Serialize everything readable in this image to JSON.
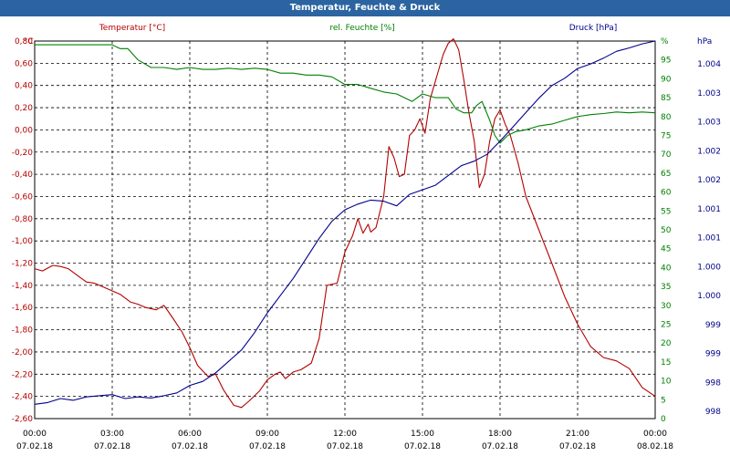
{
  "window": {
    "title": "Temperatur, Feuchte & Druck"
  },
  "chart_data": {
    "type": "line",
    "title": "Temperatur, Feuchte & Druck",
    "grid": true,
    "x_ticks": [
      {
        "time": "00:00",
        "date": "07.02.18"
      },
      {
        "time": "03:00",
        "date": "07.02.18"
      },
      {
        "time": "06:00",
        "date": "07.02.18"
      },
      {
        "time": "09:00",
        "date": "07.02.18"
      },
      {
        "time": "12:00",
        "date": "07.02.18"
      },
      {
        "time": "15:00",
        "date": "07.02.18"
      },
      {
        "time": "18:00",
        "date": "07.02.18"
      },
      {
        "time": "21:00",
        "date": "07.02.18"
      },
      {
        "time": "00:00",
        "date": "08.02.18"
      }
    ],
    "axes": {
      "temperature": {
        "label": "Temperatur [°C]",
        "unit": "°C",
        "color": "#b30000",
        "ylim": [
          -2.6,
          0.8
        ],
        "ticks": [
          "0,80",
          "0,60",
          "0,40",
          "0,20",
          "0,00",
          "-0,20",
          "-0,40",
          "-0,60",
          "-0,80",
          "-1,00",
          "-1,20",
          "-1,40",
          "-1,60",
          "-1,80",
          "-2,00",
          "-2,20",
          "-2,40",
          "-2,60"
        ]
      },
      "humidity": {
        "label": "rel. Feuchte [%]",
        "unit": "%",
        "color": "#008000",
        "ylim": [
          0,
          100
        ],
        "ticks": [
          "95",
          "90",
          "85",
          "80",
          "75",
          "70",
          "65",
          "60",
          "55",
          "50",
          "45",
          "40",
          "35",
          "30",
          "25",
          "20",
          "15",
          "10",
          "5",
          "0"
        ]
      },
      "pressure": {
        "label": "Druck [hPa]",
        "unit": "hPa",
        "color": "#00008b",
        "ylim": [
          997.7,
          1004.3
        ],
        "ticks": [
          "1.004",
          "1.003",
          "1.003",
          "1.002",
          "1.002",
          "1.001",
          "1.001",
          "1.000",
          "1.000",
          "999",
          "999",
          "998",
          "998"
        ]
      }
    },
    "series": [
      {
        "name": "Temperatur [°C]",
        "axis": "temperature",
        "color": "#b30000",
        "x": [
          0,
          0.3,
          0.7,
          1.0,
          1.3,
          1.7,
          2.0,
          2.3,
          2.7,
          3.0,
          3.3,
          3.7,
          4.0,
          4.3,
          4.7,
          5.0,
          5.3,
          5.7,
          6.0,
          6.3,
          6.7,
          7.0,
          7.3,
          7.7,
          8.0,
          8.3,
          8.7,
          9.0,
          9.3,
          9.5,
          9.7,
          10.0,
          10.3,
          10.7,
          11.0,
          11.3,
          11.7,
          12.0,
          12.3,
          12.5,
          12.7,
          12.9,
          13.0,
          13.2,
          13.5,
          13.7,
          13.9,
          14.1,
          14.3,
          14.5,
          14.7,
          14.9,
          15.1,
          15.3,
          15.6,
          15.8,
          16.0,
          16.2,
          16.4,
          16.6,
          16.8,
          17.0,
          17.2,
          17.4,
          17.6,
          17.8,
          18.0,
          18.2,
          18.4,
          18.7,
          19.0,
          19.5,
          20.0,
          20.5,
          21.0,
          21.5,
          22.0,
          22.5,
          23.0,
          23.5,
          24.0
        ],
        "values": [
          -1.25,
          -1.27,
          -1.22,
          -1.23,
          -1.25,
          -1.32,
          -1.37,
          -1.38,
          -1.42,
          -1.45,
          -1.48,
          -1.55,
          -1.57,
          -1.6,
          -1.62,
          -1.58,
          -1.68,
          -1.82,
          -1.96,
          -2.12,
          -2.22,
          -2.2,
          -2.34,
          -2.48,
          -2.5,
          -2.44,
          -2.35,
          -2.25,
          -2.2,
          -2.18,
          -2.24,
          -2.18,
          -2.16,
          -2.1,
          -1.88,
          -1.4,
          -1.38,
          -1.1,
          -0.95,
          -0.8,
          -0.93,
          -0.85,
          -0.92,
          -0.88,
          -0.6,
          -0.15,
          -0.25,
          -0.42,
          -0.4,
          -0.05,
          0.0,
          0.1,
          -0.03,
          0.28,
          0.52,
          0.68,
          0.78,
          0.82,
          0.72,
          0.45,
          0.15,
          -0.1,
          -0.52,
          -0.4,
          -0.1,
          0.1,
          0.18,
          0.05,
          -0.05,
          -0.3,
          -0.6,
          -0.9,
          -1.2,
          -1.5,
          -1.75,
          -1.95,
          -2.05,
          -2.08,
          -2.15,
          -2.32,
          -2.4
        ]
      },
      {
        "name": "rel. Feuchte [%]",
        "axis": "humidity",
        "color": "#008000",
        "x": [
          0,
          0.5,
          1.0,
          1.5,
          2.0,
          2.5,
          3.0,
          3.3,
          3.6,
          4.0,
          4.5,
          5.0,
          5.5,
          6.0,
          6.5,
          7.0,
          7.5,
          8.0,
          8.5,
          9.0,
          9.5,
          10.0,
          10.5,
          11.0,
          11.5,
          12.0,
          12.5,
          13.0,
          13.5,
          14.0,
          14.3,
          14.6,
          15.0,
          15.5,
          16.0,
          16.3,
          16.6,
          16.9,
          17.1,
          17.3,
          17.6,
          17.8,
          18.0,
          18.3,
          18.6,
          19.0,
          19.5,
          20.0,
          20.5,
          21.0,
          21.5,
          22.0,
          22.5,
          23.0,
          23.5,
          24.0
        ],
        "values": [
          99,
          99,
          99,
          99,
          99,
          99,
          99,
          98,
          98,
          95,
          93,
          93,
          92.5,
          93,
          92.5,
          92.5,
          92.8,
          92.5,
          92.8,
          92.5,
          91.5,
          91.5,
          91,
          91,
          90.5,
          88.5,
          88.5,
          87.5,
          86.5,
          86,
          85,
          84,
          86,
          85,
          85,
          82,
          81,
          81,
          83,
          84,
          79,
          75,
          73,
          75,
          76,
          76.5,
          77.5,
          78,
          79,
          80,
          80.5,
          80.8,
          81.2,
          81,
          81.2,
          81
        ]
      },
      {
        "name": "Druck [hPa]",
        "axis": "pressure",
        "color": "#00008b",
        "x": [
          0,
          0.5,
          1.0,
          1.5,
          2.0,
          2.5,
          3.0,
          3.5,
          4.0,
          4.5,
          5.0,
          5.5,
          6.0,
          6.5,
          7.0,
          7.5,
          8.0,
          8.5,
          9.0,
          9.5,
          10.0,
          10.5,
          11.0,
          11.5,
          12.0,
          12.5,
          13.0,
          13.5,
          14.0,
          14.5,
          15.0,
          15.5,
          16.0,
          16.5,
          17.0,
          17.5,
          18.0,
          18.5,
          19.0,
          19.5,
          20.0,
          20.5,
          21.0,
          21.5,
          22.0,
          22.5,
          23.0,
          23.5,
          24.0
        ],
        "values": [
          997.95,
          997.98,
          998.05,
          998.02,
          998.08,
          998.1,
          998.12,
          998.05,
          998.08,
          998.06,
          998.1,
          998.15,
          998.28,
          998.35,
          998.5,
          998.7,
          998.9,
          999.2,
          999.55,
          999.85,
          1000.15,
          1000.5,
          1000.85,
          1001.15,
          1001.35,
          1001.45,
          1001.52,
          1001.5,
          1001.42,
          1001.62,
          1001.7,
          1001.78,
          1001.95,
          1002.12,
          1002.2,
          1002.32,
          1002.55,
          1002.8,
          1003.05,
          1003.3,
          1003.52,
          1003.65,
          1003.82,
          1003.9,
          1004.0,
          1004.12,
          1004.18,
          1004.25,
          1004.3
        ]
      }
    ]
  }
}
